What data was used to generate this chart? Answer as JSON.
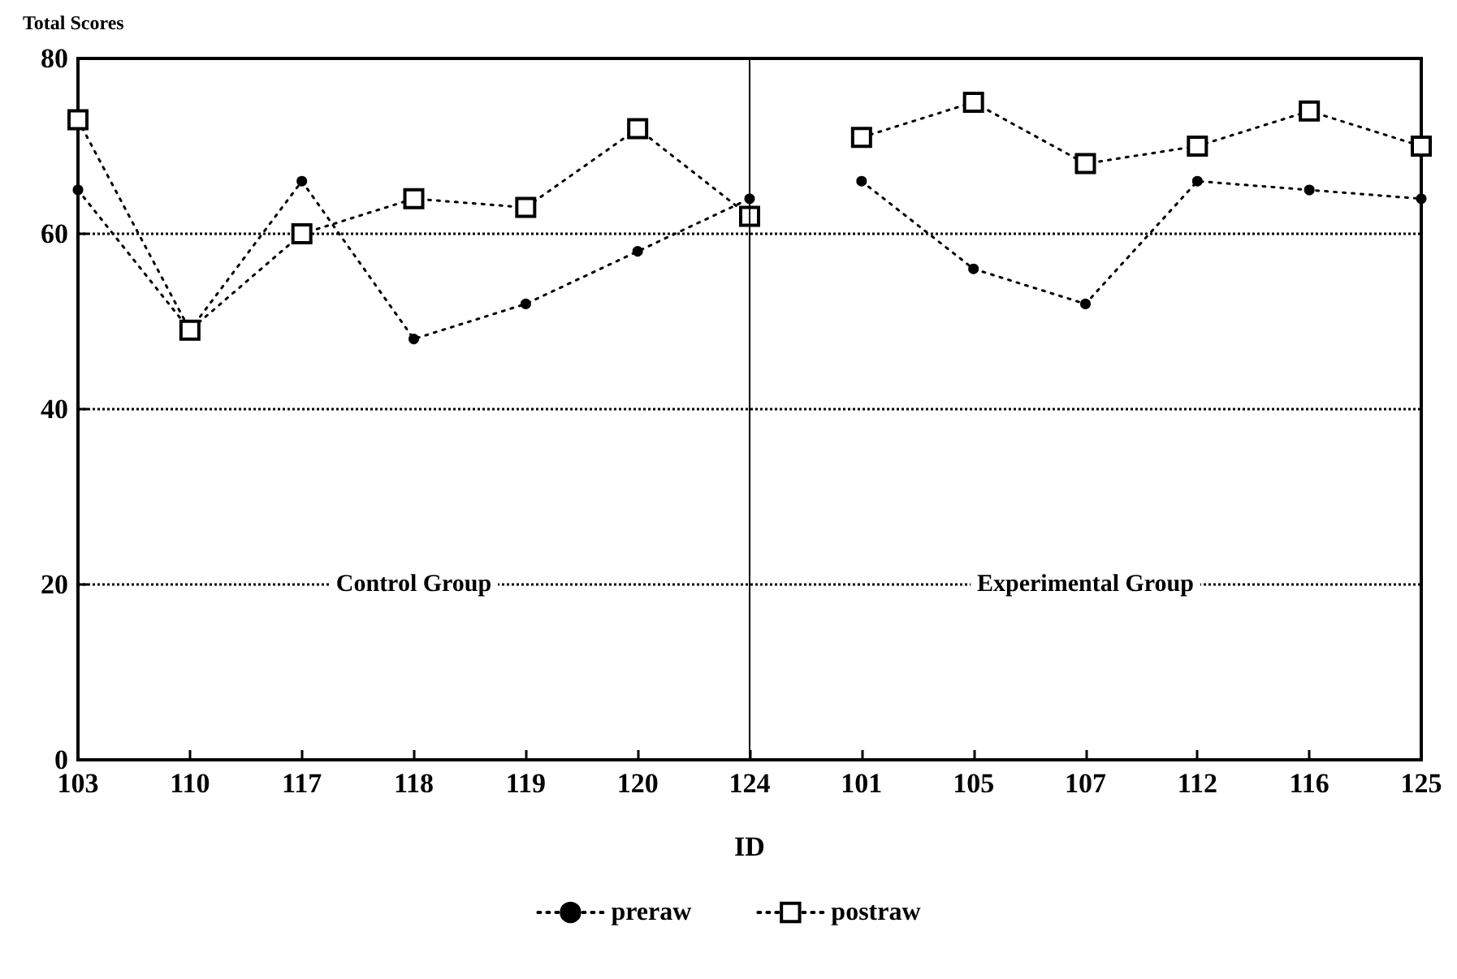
{
  "chart_data": {
    "type": "line",
    "ylabel": "Total Scores",
    "xlabel": "ID",
    "categories": [
      "103",
      "110",
      "117",
      "118",
      "119",
      "120",
      "124",
      "101",
      "105",
      "107",
      "112",
      "116",
      "125"
    ],
    "series": [
      {
        "name": "preraw",
        "color": "#000000",
        "marker": "circle",
        "values": [
          65,
          49,
          66,
          48,
          52,
          58,
          64,
          null,
          null,
          null,
          null,
          null,
          null
        ]
      },
      {
        "name": "postraw",
        "color": "#000000",
        "marker": "square",
        "values": [
          73,
          49,
          60,
          64,
          63,
          72,
          62,
          null,
          null,
          null,
          null,
          null,
          null
        ]
      },
      {
        "color": "#000000",
        "marker": "circle",
        "values": [
          null,
          null,
          null,
          null,
          null,
          null,
          null,
          66,
          56,
          52,
          66,
          65,
          64
        ]
      },
      {
        "color": "#000000",
        "marker": "square",
        "values": [
          null,
          null,
          null,
          null,
          null,
          null,
          null,
          71,
          75,
          68,
          70,
          74,
          70
        ]
      }
    ],
    "ylim": [
      0,
      80
    ],
    "yticks": [
      0,
      20,
      40,
      60,
      80
    ],
    "grid": "y",
    "line_style": "dotted",
    "legend": "bottom",
    "ref_lines": [
      {
        "axis": "x",
        "value": "124",
        "color": "#000000",
        "line_style": "solid"
      }
    ],
    "annotations": [
      "Control Group",
      "Experimental Group"
    ]
  }
}
